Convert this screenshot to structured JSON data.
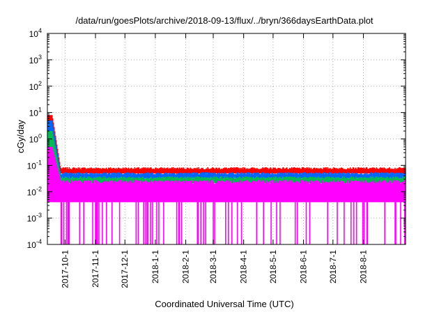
{
  "chart_data": {
    "type": "area",
    "title": "/data/run/goesPlots/archive/2018-09-13/flux/../bryn/366daysEarthData.plot",
    "xlabel": "Coordinated Universal Time (UTC)",
    "ylabel": "cGy/day",
    "yscale": "log",
    "ylim": [
      0.0001,
      10000
    ],
    "xlim": [
      "2017-09-13",
      "2018-09-13"
    ],
    "yticks": [
      {
        "value": 0.0001,
        "base": "10",
        "exp": "-4"
      },
      {
        "value": 0.001,
        "base": "10",
        "exp": "-3"
      },
      {
        "value": 0.01,
        "base": "10",
        "exp": "-2"
      },
      {
        "value": 0.1,
        "base": "10",
        "exp": "-1"
      },
      {
        "value": 1,
        "base": "10",
        "exp": "0"
      },
      {
        "value": 10,
        "base": "10",
        "exp": "1"
      },
      {
        "value": 100,
        "base": "10",
        "exp": "2"
      },
      {
        "value": 1000,
        "base": "10",
        "exp": "3"
      },
      {
        "value": 10000,
        "base": "10",
        "exp": "4"
      }
    ],
    "xticks": [
      "2017-10-1",
      "2017-11-1",
      "2017-12-1",
      "2018-1-1",
      "2018-2-1",
      "2018-3-1",
      "2018-4-1",
      "2018-5-1",
      "2018-6-1",
      "2018-7-1",
      "2018-8-1"
    ],
    "grid": true,
    "series": [
      {
        "color": "#ff0000",
        "start_peak": 8,
        "baseline": 0.07,
        "upper": 0.085
      },
      {
        "color": "#0066ff",
        "start_peak": 5,
        "baseline": 0.045,
        "upper": 0.055
      },
      {
        "color": "#00bb55",
        "start_peak": 2,
        "baseline": 0.03,
        "upper": 0.038
      },
      {
        "color": "#ff00ff",
        "start_peak": 0.5,
        "baseline": 0.02,
        "upper": 0.028,
        "lower": 0.004,
        "dropout_min": 0.0001
      }
    ]
  }
}
